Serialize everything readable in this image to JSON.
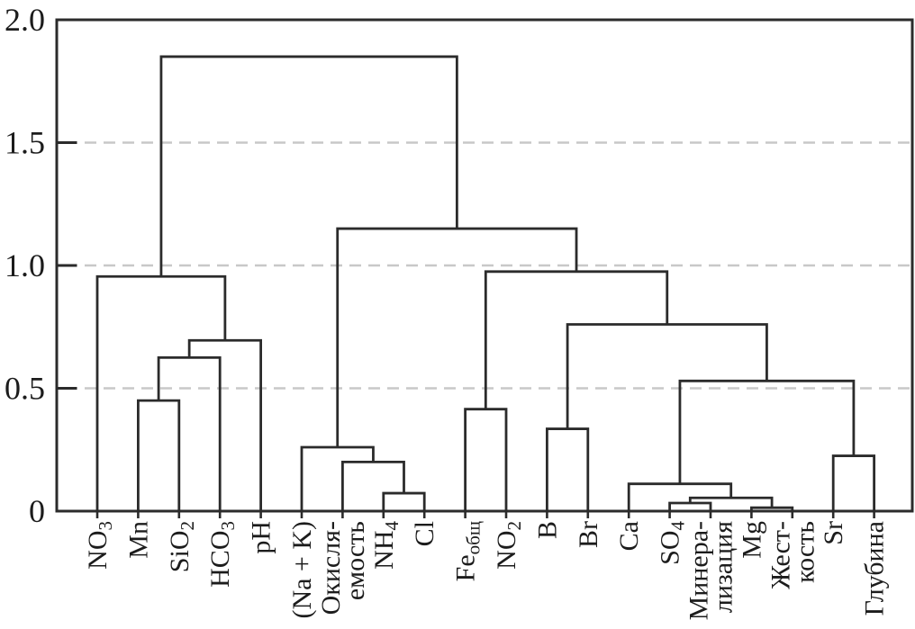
{
  "figure": {
    "background": "#ffffff",
    "description": "Dendrogram of hierarchical cluster analysis of hydrochemical parameters"
  },
  "chart_data": {
    "type": "dendrogram",
    "title": "",
    "xlabel": "",
    "ylabel": "",
    "ylim": [
      0,
      2.0
    ],
    "grid": "horizontal-dashed",
    "grid_values": [
      0.5,
      1.0,
      1.5
    ],
    "yticks": [
      {
        "label": "0",
        "value": 0,
        "grid": false
      },
      {
        "label": "0.5",
        "value": 0.5,
        "grid": true
      },
      {
        "label": "1.0",
        "value": 1.0,
        "grid": true
      },
      {
        "label": "1.5",
        "value": 1.5,
        "grid": true
      },
      {
        "label": "2.0",
        "value": 2.0,
        "grid": false
      }
    ],
    "colors": {
      "line": "#2b2b2b",
      "grid": "#c8c8c8",
      "text": "#1c1c1c",
      "background": "#ffffff"
    },
    "leaves": [
      {
        "name": "no3",
        "label": "NO₃",
        "lines": [
          [
            {
              "t": "NO"
            },
            {
              "t": "3",
              "sub": true
            }
          ]
        ]
      },
      {
        "name": "mn",
        "label": "Mn",
        "lines": [
          [
            {
              "t": "Mn"
            }
          ]
        ]
      },
      {
        "name": "sio2",
        "label": "SiO₂",
        "lines": [
          [
            {
              "t": "SiO"
            },
            {
              "t": "2",
              "sub": true
            }
          ]
        ]
      },
      {
        "name": "hco3",
        "label": "HCO₃",
        "lines": [
          [
            {
              "t": "HCO"
            },
            {
              "t": "3",
              "sub": true
            }
          ]
        ]
      },
      {
        "name": "ph",
        "label": "pH",
        "lines": [
          [
            {
              "t": "pH"
            }
          ]
        ]
      },
      {
        "name": "na-k",
        "label": "(Na + K)",
        "lines": [
          [
            {
              "t": "(Na + K)"
            }
          ]
        ]
      },
      {
        "name": "oxidizability",
        "label": "Окисля-емость",
        "lines": [
          [
            {
              "t": "Окисля-"
            }
          ],
          [
            {
              "t": "емость"
            }
          ]
        ]
      },
      {
        "name": "nh4",
        "label": "NH₄",
        "lines": [
          [
            {
              "t": "NH"
            },
            {
              "t": "4",
              "sub": true
            }
          ]
        ]
      },
      {
        "name": "cl",
        "label": "Cl",
        "lines": [
          [
            {
              "t": "Cl"
            }
          ]
        ]
      },
      {
        "name": "fe-total",
        "label": "Feобщ",
        "lines": [
          [
            {
              "t": "Fe"
            },
            {
              "t": "общ",
              "sub": true
            }
          ]
        ]
      },
      {
        "name": "no2",
        "label": "NO₂",
        "lines": [
          [
            {
              "t": "NO"
            },
            {
              "t": "2",
              "sub": true
            }
          ]
        ]
      },
      {
        "name": "b",
        "label": "B",
        "lines": [
          [
            {
              "t": "B"
            }
          ]
        ]
      },
      {
        "name": "br",
        "label": "Br",
        "lines": [
          [
            {
              "t": "Br"
            }
          ]
        ]
      },
      {
        "name": "ca",
        "label": "Ca",
        "lines": [
          [
            {
              "t": "Ca"
            }
          ]
        ]
      },
      {
        "name": "so4",
        "label": "SO₄",
        "lines": [
          [
            {
              "t": "SO"
            },
            {
              "t": "4",
              "sub": true
            }
          ]
        ]
      },
      {
        "name": "mineralization",
        "label": "Минера-лизация",
        "lines": [
          [
            {
              "t": "Минера-"
            }
          ],
          [
            {
              "t": "лизация"
            }
          ]
        ]
      },
      {
        "name": "mg",
        "label": "Mg",
        "lines": [
          [
            {
              "t": "Mg"
            }
          ]
        ]
      },
      {
        "name": "hardness",
        "label": "Жест-кость",
        "lines": [
          [
            {
              "t": "Жест-"
            }
          ],
          [
            {
              "t": "кость"
            }
          ]
        ]
      },
      {
        "name": "sr",
        "label": "Sr",
        "lines": [
          [
            {
              "t": "Sr"
            }
          ]
        ]
      },
      {
        "name": "depth",
        "label": "Глубина",
        "lines": [
          [
            {
              "t": "Глубина"
            }
          ]
        ]
      }
    ],
    "merges": [
      {
        "a": "L1",
        "b": "L2",
        "height": 0.45
      },
      {
        "a": "M0",
        "b": "L3",
        "height": 0.625
      },
      {
        "a": "M1",
        "b": "L4",
        "height": 0.695
      },
      {
        "a": "L0",
        "b": "M2",
        "height": 0.955
      },
      {
        "a": "L7",
        "b": "L8",
        "height": 0.073
      },
      {
        "a": "L6",
        "b": "M4",
        "height": 0.2
      },
      {
        "a": "L5",
        "b": "M5",
        "height": 0.26
      },
      {
        "a": "L9",
        "b": "L10",
        "height": 0.415
      },
      {
        "a": "L11",
        "b": "L12",
        "height": 0.335
      },
      {
        "a": "L14",
        "b": "L15",
        "height": 0.033
      },
      {
        "a": "L16",
        "b": "L17",
        "height": 0.014
      },
      {
        "a": "M9",
        "b": "M10",
        "height": 0.054
      },
      {
        "a": "L13",
        "b": "M11",
        "height": 0.111
      },
      {
        "a": "L18",
        "b": "L19",
        "height": 0.225
      },
      {
        "a": "M12",
        "b": "M13",
        "height": 0.53
      },
      {
        "a": "M8",
        "b": "M14",
        "height": 0.76
      },
      {
        "a": "M7",
        "b": "M15",
        "height": 0.975
      },
      {
        "a": "M6",
        "b": "M16",
        "height": 1.15
      },
      {
        "a": "M3",
        "b": "M17",
        "height": 1.85
      }
    ]
  }
}
